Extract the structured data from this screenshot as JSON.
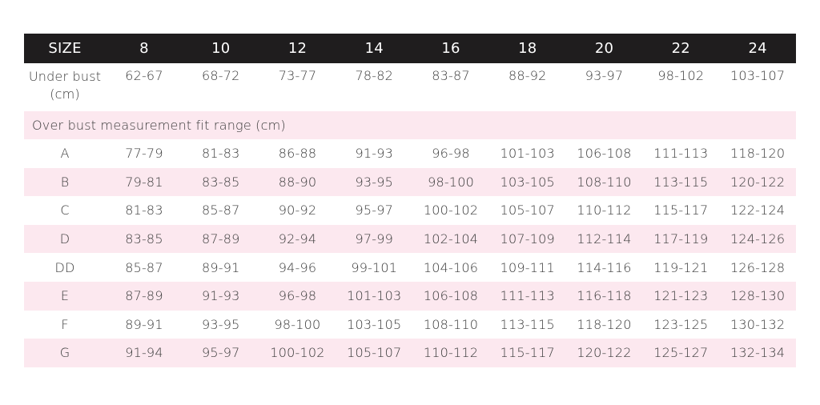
{
  "header": {
    "label": "SIZE",
    "sizes": [
      "8",
      "10",
      "12",
      "14",
      "16",
      "18",
      "20",
      "22",
      "24"
    ]
  },
  "underbust": {
    "label": "Under bust (cm)",
    "values": [
      "62-67",
      "68-72",
      "73-77",
      "78-82",
      "83-87",
      "88-92",
      "93-97",
      "98-102",
      "103-107"
    ]
  },
  "section": {
    "label": "Over bust measurement fit range (cm)"
  },
  "cups": [
    {
      "cup": "A",
      "values": [
        "77-79",
        "81-83",
        "86-88",
        "91-93",
        "96-98",
        "101-103",
        "106-108",
        "111-113",
        "118-120"
      ]
    },
    {
      "cup": "B",
      "values": [
        "79-81",
        "83-85",
        "88-90",
        "93-95",
        "98-100",
        "103-105",
        "108-110",
        "113-115",
        "120-122"
      ]
    },
    {
      "cup": "C",
      "values": [
        "81-83",
        "85-87",
        "90-92",
        "95-97",
        "100-102",
        "105-107",
        "110-112",
        "115-117",
        "122-124"
      ]
    },
    {
      "cup": "D",
      "values": [
        "83-85",
        "87-89",
        "92-94",
        "97-99",
        "102-104",
        "107-109",
        "112-114",
        "117-119",
        "124-126"
      ]
    },
    {
      "cup": "DD",
      "values": [
        "85-87",
        "89-91",
        "94-96",
        "99-101",
        "104-106",
        "109-111",
        "114-116",
        "119-121",
        "126-128"
      ]
    },
    {
      "cup": "E",
      "values": [
        "87-89",
        "91-93",
        "96-98",
        "101-103",
        "106-108",
        "111-113",
        "116-118",
        "121-123",
        "128-130"
      ]
    },
    {
      "cup": "F",
      "values": [
        "89-91",
        "93-95",
        "98-100",
        "103-105",
        "108-110",
        "113-115",
        "118-120",
        "123-125",
        "130-132"
      ]
    },
    {
      "cup": "G",
      "values": [
        "91-94",
        "95-97",
        "100-102",
        "105-107",
        "110-112",
        "115-117",
        "120-122",
        "125-127",
        "132-134"
      ]
    }
  ],
  "colors": {
    "header_bg": "#1f1d1e",
    "header_text": "#ffffff",
    "stripe_bg": "#fce8ef",
    "text": "#3a3a3a"
  }
}
